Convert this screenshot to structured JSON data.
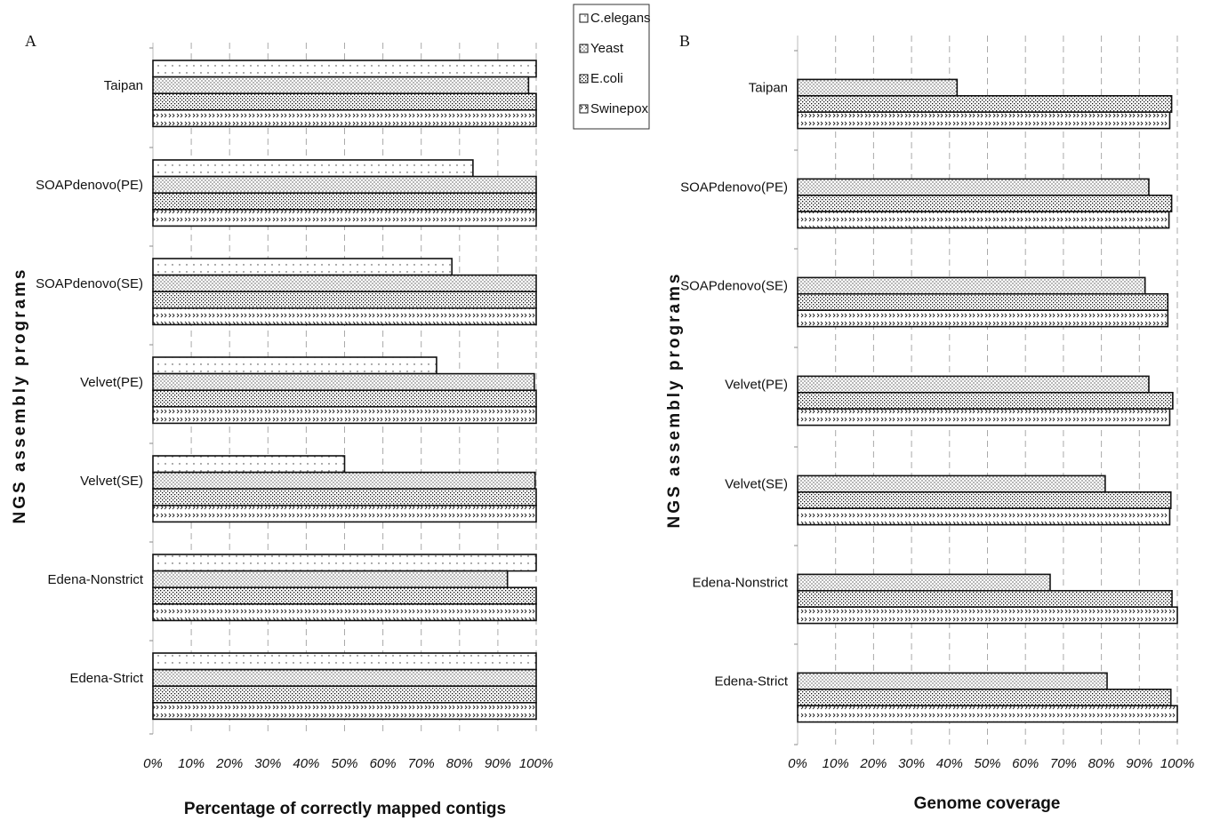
{
  "legend": {
    "entries": [
      "C.elegans",
      "Yeast",
      "E.coli",
      "Swinepox"
    ]
  },
  "chart_data": [
    {
      "type": "bar",
      "orientation": "horizontal",
      "panel_label": "A",
      "xlabel": "Percentage of correctly mapped contigs",
      "ylabel": "NGS assembly programs",
      "xlim": [
        0,
        100
      ],
      "x_ticks": [
        "0%",
        "10%",
        "20%",
        "30%",
        "40%",
        "50%",
        "60%",
        "70%",
        "80%",
        "90%",
        "100%"
      ],
      "grid": "vertical dashed",
      "legend": "top-center",
      "categories": [
        "Taipan",
        "SOAPdenovo(PE)",
        "SOAPdenovo(SE)",
        "Velvet(PE)",
        "Velvet(SE)",
        "Edena-Nonstrict",
        "Edena-Strict"
      ],
      "series": [
        {
          "name": "C.elegans",
          "values": [
            100,
            83.5,
            78,
            74,
            50,
            100,
            100
          ]
        },
        {
          "name": "Yeast",
          "values": [
            98,
            100,
            100,
            99.5,
            99.7,
            92.5,
            100
          ]
        },
        {
          "name": "E.coli",
          "values": [
            100,
            100,
            100,
            100,
            100,
            100,
            100
          ]
        },
        {
          "name": "Swinepox",
          "values": [
            100,
            100,
            100,
            100,
            100,
            100,
            100
          ]
        }
      ]
    },
    {
      "type": "bar",
      "orientation": "horizontal",
      "panel_label": "B",
      "xlabel": "Genome coverage",
      "ylabel": "NGS assembly programs",
      "xlim": [
        0,
        100
      ],
      "x_ticks": [
        "0%",
        "10%",
        "20%",
        "30%",
        "40%",
        "50%",
        "60%",
        "70%",
        "80%",
        "90%",
        "100%"
      ],
      "grid": "vertical dashed",
      "categories": [
        "Taipan",
        "SOAPdenovo(PE)",
        "SOAPdenovo(SE)",
        "Velvet(PE)",
        "Velvet(SE)",
        "Edena-Nonstrict",
        "Edena-Strict"
      ],
      "series": [
        {
          "name": "C.elegans",
          "values": [
            0,
            0,
            0,
            0,
            0,
            0,
            0
          ]
        },
        {
          "name": "Yeast",
          "values": [
            42,
            92.5,
            91.5,
            92.5,
            81,
            66.5,
            81.5
          ]
        },
        {
          "name": "E.coli",
          "values": [
            98.5,
            98.5,
            97.5,
            98.8,
            98.3,
            98.6,
            98.3
          ]
        },
        {
          "name": "Swinepox",
          "values": [
            98,
            97.8,
            97.5,
            98,
            98,
            100,
            100
          ]
        }
      ]
    }
  ]
}
